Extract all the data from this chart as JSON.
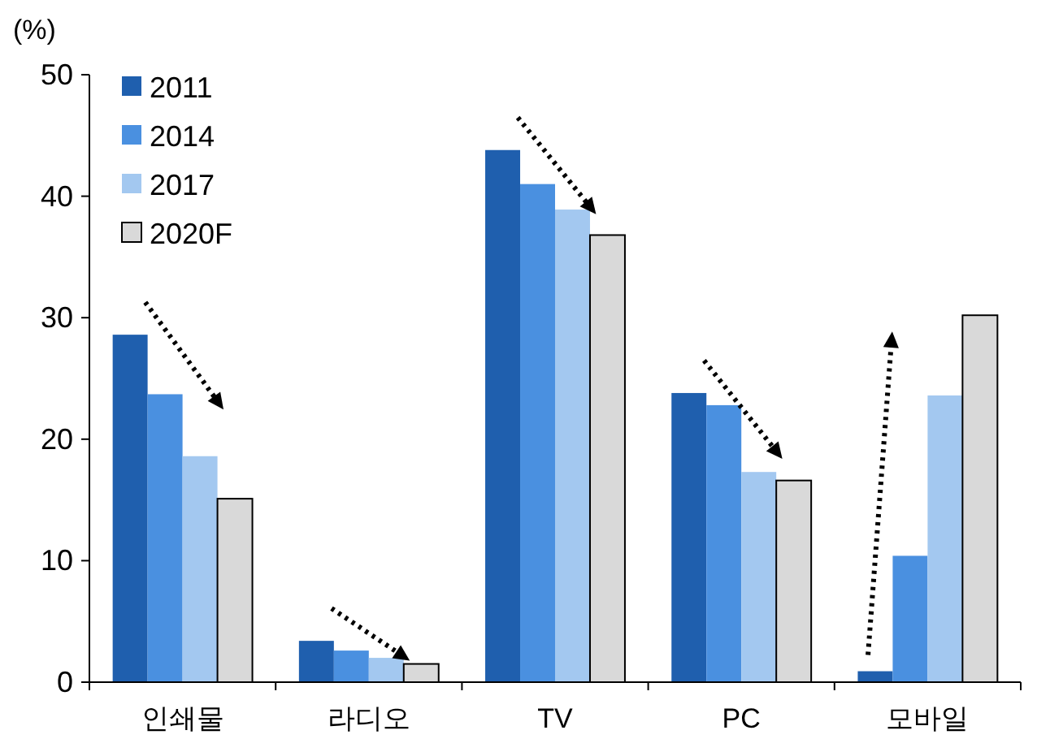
{
  "chart_data": {
    "type": "bar",
    "ylabel": "(%)",
    "categories": [
      "인쇄물",
      "라디오",
      "TV",
      "PC",
      "모바일"
    ],
    "series": [
      {
        "name": "2011",
        "color": "#1f5fae",
        "values": [
          28.6,
          3.4,
          43.8,
          23.8,
          0.9
        ]
      },
      {
        "name": "2014",
        "color": "#4a90e0",
        "values": [
          23.7,
          2.6,
          41.0,
          22.8,
          10.4
        ]
      },
      {
        "name": "2017",
        "color": "#a3c8f0",
        "values": [
          18.6,
          2.0,
          38.9,
          17.3,
          23.6
        ]
      },
      {
        "name": "2020F",
        "color": "#d9d9d9",
        "values": [
          15.1,
          1.5,
          36.8,
          16.6,
          30.2
        ]
      }
    ],
    "ylim": [
      0,
      50
    ],
    "yticks": [
      0,
      10,
      20,
      30,
      40,
      50
    ],
    "grid": false,
    "legend": "top left"
  }
}
